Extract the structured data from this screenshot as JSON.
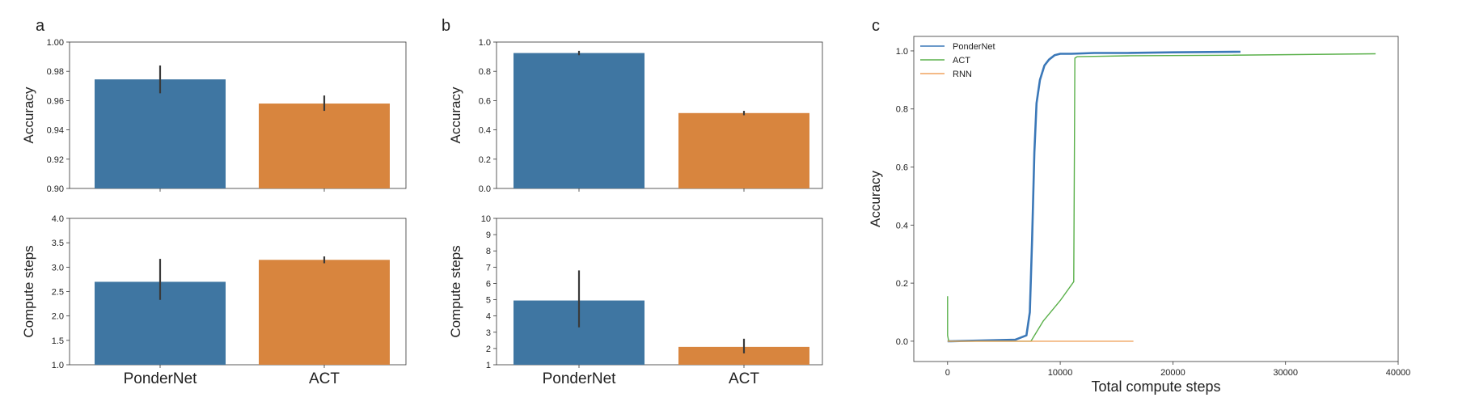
{
  "panel_labels": [
    "a",
    "b",
    "c"
  ],
  "colors": {
    "blue": "#3f76a2",
    "orange": "#d8853e",
    "green": "#5ab04a",
    "line_blue": "#3b78b8",
    "line_orange": "#f0a35e"
  },
  "chart_data": [
    {
      "id": "a-top",
      "panel": "a",
      "type": "bar",
      "categories": [
        "PonderNet",
        "ACT"
      ],
      "values": [
        0.9745,
        0.958
      ],
      "error_low": [
        0.965,
        0.953
      ],
      "error_high": [
        0.984,
        0.9635
      ],
      "ylabel": "Accuracy",
      "ylim": [
        0.9,
        1.0
      ],
      "yticks": [
        0.9,
        0.92,
        0.94,
        0.96,
        0.98,
        1.0
      ],
      "ytick_labels": [
        "0.90",
        "0.92",
        "0.94",
        "0.96",
        "0.98",
        "1.00"
      ],
      "show_xlabels": false
    },
    {
      "id": "a-bottom",
      "panel": "a",
      "type": "bar",
      "categories": [
        "PonderNet",
        "ACT"
      ],
      "values": [
        2.7,
        3.15
      ],
      "error_low": [
        2.33,
        3.08
      ],
      "error_high": [
        3.17,
        3.22
      ],
      "ylabel": "Compute steps",
      "ylim": [
        1.0,
        4.0
      ],
      "yticks": [
        1.0,
        1.5,
        2.0,
        2.5,
        3.0,
        3.5,
        4.0
      ],
      "ytick_labels": [
        "1.0",
        "1.5",
        "2.0",
        "2.5",
        "3.0",
        "3.5",
        "4.0"
      ],
      "show_xlabels": true
    },
    {
      "id": "b-top",
      "panel": "b",
      "type": "bar",
      "categories": [
        "PonderNet",
        "ACT"
      ],
      "values": [
        0.925,
        0.515
      ],
      "error_low": [
        0.91,
        0.5
      ],
      "error_high": [
        0.94,
        0.53
      ],
      "ylabel": "Accuracy",
      "ylim": [
        0.0,
        1.0
      ],
      "yticks": [
        0.0,
        0.2,
        0.4,
        0.6,
        0.8,
        1.0
      ],
      "ytick_labels": [
        "0.0",
        "0.2",
        "0.4",
        "0.6",
        "0.8",
        "1.0"
      ],
      "show_xlabels": false
    },
    {
      "id": "b-bottom",
      "panel": "b",
      "type": "bar",
      "categories": [
        "PonderNet",
        "ACT"
      ],
      "values": [
        4.95,
        2.1
      ],
      "error_low": [
        3.3,
        1.7
      ],
      "error_high": [
        6.8,
        2.6
      ],
      "ylabel": "Compute steps",
      "ylim": [
        1,
        10
      ],
      "yticks": [
        1,
        2,
        3,
        4,
        5,
        6,
        7,
        8,
        9,
        10
      ],
      "ytick_labels": [
        "1",
        "2",
        "3",
        "4",
        "5",
        "6",
        "7",
        "8",
        "9",
        "10"
      ],
      "show_xlabels": true
    },
    {
      "id": "c",
      "panel": "c",
      "type": "line",
      "xlabel": "Total compute steps",
      "ylabel": "Accuracy",
      "xlim": [
        -3000,
        40000
      ],
      "ylim": [
        -0.07,
        1.05
      ],
      "xticks": [
        0,
        10000,
        20000,
        30000,
        40000
      ],
      "xtick_labels": [
        "0",
        "10000",
        "20000",
        "30000",
        "40000"
      ],
      "yticks": [
        0.0,
        0.2,
        0.4,
        0.6,
        0.8,
        1.0
      ],
      "ytick_labels": [
        "0.0",
        "0.2",
        "0.4",
        "0.6",
        "0.8",
        "1.0"
      ],
      "legend_position": "top-left",
      "series": [
        {
          "name": "PonderNet",
          "color_key": "line_blue",
          "x": [
            0,
            300,
            6000,
            7000,
            7300,
            7500,
            7700,
            7900,
            8200,
            8600,
            9000,
            9500,
            10000,
            11000,
            13000,
            16000,
            20000,
            26000
          ],
          "y": [
            0.0,
            0.0,
            0.005,
            0.02,
            0.1,
            0.35,
            0.65,
            0.82,
            0.9,
            0.95,
            0.97,
            0.985,
            0.99,
            0.99,
            0.993,
            0.993,
            0.995,
            0.997
          ]
        },
        {
          "name": "ACT",
          "color_key": "green",
          "x": [
            0,
            0,
            100,
            7000,
            7400,
            8500,
            10000,
            11200,
            11300,
            11500,
            16000,
            25000,
            38000
          ],
          "y": [
            0.155,
            0.02,
            0.0,
            0.0,
            0.0,
            0.07,
            0.14,
            0.205,
            0.975,
            0.98,
            0.983,
            0.985,
            0.99
          ]
        },
        {
          "name": "RNN",
          "color_key": "line_orange",
          "x": [
            0,
            16500
          ],
          "y": [
            0.0,
            0.0
          ]
        }
      ]
    }
  ]
}
